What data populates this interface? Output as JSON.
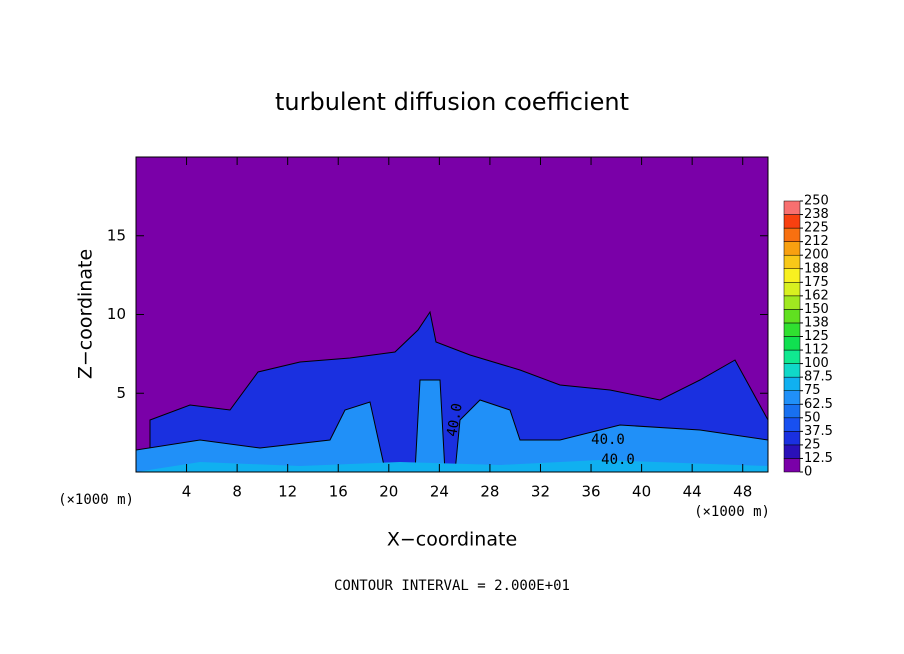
{
  "chart_data": {
    "type": "contour",
    "title": "turbulent diffusion coefficient",
    "x_label": "X−coordinate",
    "y_label": "Z−coordinate",
    "x_unit_label": "(×1000 m)",
    "footer": "CONTOUR INTERVAL = 2.000E+01",
    "contour_labels": [
      "40.0",
      "40.0",
      "40.0"
    ],
    "xlim": [
      0,
      50
    ],
    "xticks": [
      4,
      8,
      12,
      16,
      20,
      24,
      28,
      32,
      36,
      40,
      44,
      48
    ],
    "ylim": [
      0,
      20
    ],
    "yticks": [
      5,
      10,
      15
    ],
    "colorbar_ticks": [
      0,
      12.5,
      25,
      37.5,
      50,
      62.5,
      75,
      87.5,
      100,
      {
        "value": 112.5,
        "label": "112"
      },
      125,
      {
        "value": 137.5,
        "label": "138"
      },
      150,
      {
        "value": 162.5,
        "label": "162"
      },
      175,
      {
        "value": 187.5,
        "label": "188"
      },
      200,
      {
        "value": 212.5,
        "label": "212"
      },
      225,
      {
        "value": 237.5,
        "label": "238"
      },
      250
    ],
    "colorbar_colors": [
      "#7a00a8",
      "#2a10b8",
      "#1a30e0",
      "#1850f0",
      "#1870f0",
      "#2090f8",
      "#10b0f0",
      "#10d8c8",
      "#10e890",
      "#10e050",
      "#30e030",
      "#60e020",
      "#a0e820",
      "#d8f020",
      "#f8f020",
      "#f8c818",
      "#f8a010",
      "#f87010",
      "#f84010",
      "#f87070"
    ]
  }
}
